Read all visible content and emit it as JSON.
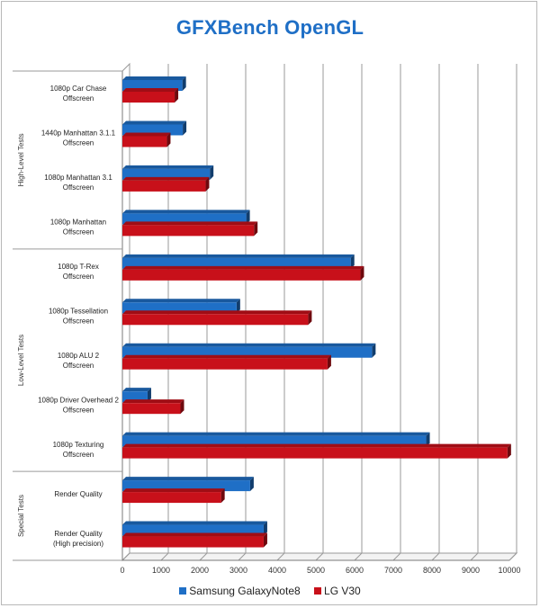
{
  "chart_data": {
    "type": "bar",
    "orientation": "horizontal",
    "title": "GFXBench OpenGL",
    "groups": [
      {
        "name": "High-Level Tests",
        "categories": [
          0,
          1,
          2,
          3
        ]
      },
      {
        "name": "Low-Level Tests",
        "categories": [
          4,
          5,
          6,
          7,
          8
        ]
      },
      {
        "name": "Special Tests",
        "categories": [
          9,
          10
        ]
      }
    ],
    "categories": [
      [
        "1080p Car Chase",
        "Offscreen"
      ],
      [
        "1440p Manhattan 3.1.1",
        "Offscreen"
      ],
      [
        "1080p Manhattan 3.1",
        "Offscreen"
      ],
      [
        "1080p Manhattan",
        "Offscreen"
      ],
      [
        "1080p T-Rex",
        "Offscreen"
      ],
      [
        "1080p Tessellation",
        "Offscreen"
      ],
      [
        "1080p ALU 2",
        "Offscreen"
      ],
      [
        "1080p Driver Overhead 2",
        "Offscreen"
      ],
      [
        "1080p Texturing",
        "Offscreen"
      ],
      [
        "Render Quality"
      ],
      [
        "Render Quality",
        "(High precision)"
      ]
    ],
    "series": [
      {
        "name": "Samsung GalaxyNote8",
        "color": "#1f6fc6",
        "values": [
          1550,
          1560,
          2260,
          3200,
          5900,
          2950,
          6450,
          650,
          7850,
          3300,
          3650
        ]
      },
      {
        "name": "LG V30",
        "color": "#c8101a",
        "values": [
          1350,
          1150,
          2150,
          3400,
          6150,
          4800,
          5300,
          1500,
          9950,
          2550,
          3650
        ]
      }
    ],
    "xlim": [
      0,
      10000
    ],
    "xticks": [
      0,
      1000,
      2000,
      3000,
      4000,
      5000,
      6000,
      7000,
      8000,
      9000,
      10000
    ],
    "grid": true,
    "legend_position": "bottom"
  }
}
